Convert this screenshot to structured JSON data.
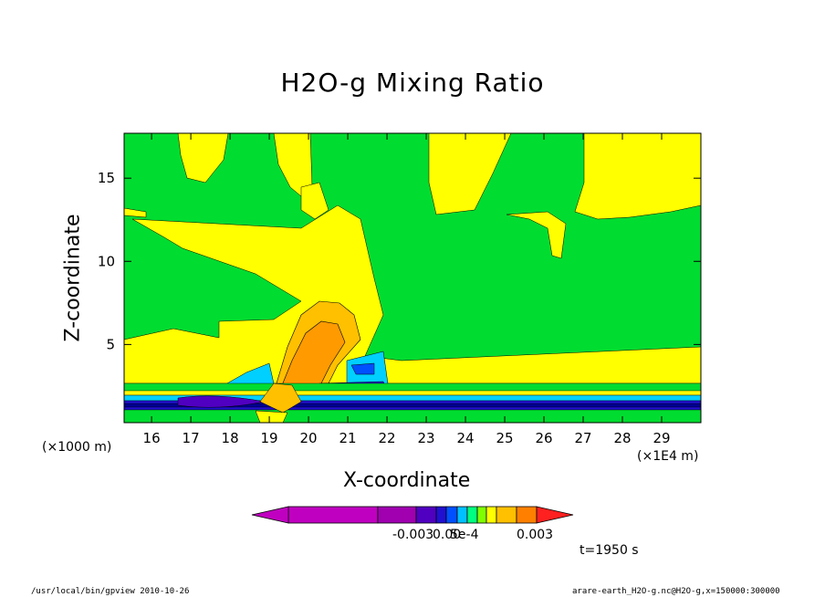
{
  "chart_data": {
    "type": "contour",
    "title": "H2O-g Mixing Ratio",
    "xlabel": "X-coordinate",
    "ylabel": "Z-coordinate",
    "x_unit_note": "(×1E4 m)",
    "y_unit_note": "(×1000 m)",
    "xlim": [
      15.3,
      30.0
    ],
    "ylim": [
      0.3,
      17.7
    ],
    "x_ticks": [
      16,
      17,
      18,
      19,
      20,
      21,
      22,
      23,
      24,
      25,
      26,
      27,
      28,
      29
    ],
    "y_ticks": [
      5,
      10,
      15
    ],
    "colorbar": {
      "labels": [
        "-0.003",
        "0.00",
        "5e-4",
        "0.003"
      ],
      "colors": [
        "#c000c0",
        "#a000b0",
        "#8000a0",
        "#5000c0",
        "#2010d0",
        "#0050ff",
        "#00c0ff",
        "#00ff80",
        "#80ff00",
        "#ffff00",
        "#ffc000",
        "#ff8000",
        "#ff2020"
      ]
    },
    "time_label": "t=1950 s"
  },
  "footer": {
    "left": "/usr/local/bin/gpview  2010-10-26",
    "right": "arare-earth_H2O-g.nc@H2O-g,x=150000:300000"
  }
}
